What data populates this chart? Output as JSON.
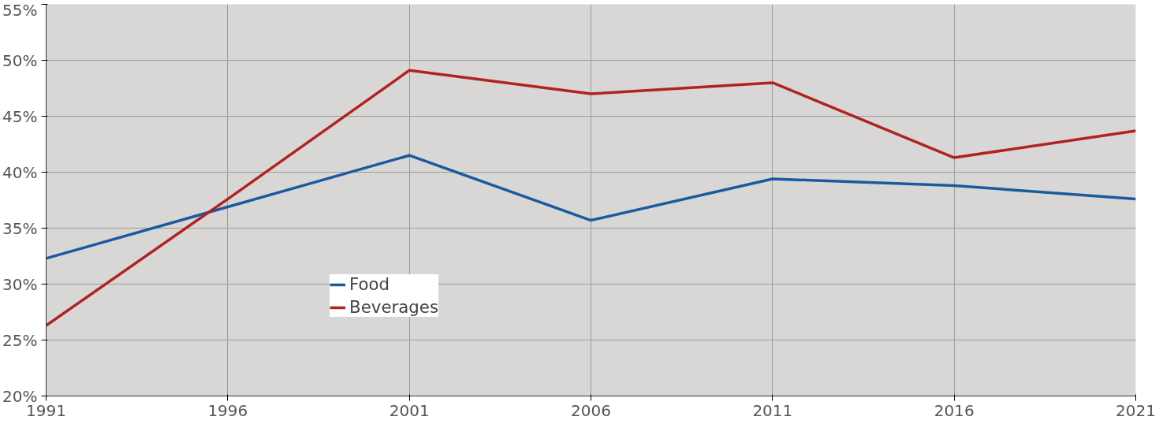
{
  "chart_data": {
    "type": "line",
    "x": [
      1991,
      1996,
      2001,
      2006,
      2011,
      2016,
      2021
    ],
    "series": [
      {
        "name": "Food",
        "color": "#1a5aa0",
        "values": [
          32.3,
          36.9,
          41.5,
          35.7,
          39.4,
          38.8,
          37.6
        ]
      },
      {
        "name": "Beverages",
        "color": "#b0231f",
        "values": [
          26.3,
          37.6,
          49.1,
          47.0,
          48.0,
          41.3,
          43.7
        ]
      }
    ],
    "xlim": [
      1991,
      2021
    ],
    "xticks": [
      1991,
      1996,
      2001,
      2006,
      2011,
      2016,
      2021
    ],
    "ylim": [
      20,
      55
    ],
    "yticks": [
      {
        "value": 20,
        "label": "20%"
      },
      {
        "value": 25,
        "label": "25%"
      },
      {
        "value": 30,
        "label": "30%"
      },
      {
        "value": 35,
        "label": "35%"
      },
      {
        "value": 40,
        "label": "40%"
      },
      {
        "value": 45,
        "label": "45%"
      },
      {
        "value": 50,
        "label": "50%"
      },
      {
        "value": 55,
        "label": "55%"
      }
    ],
    "grid": true,
    "legend": "left",
    "line_style": "solid"
  }
}
